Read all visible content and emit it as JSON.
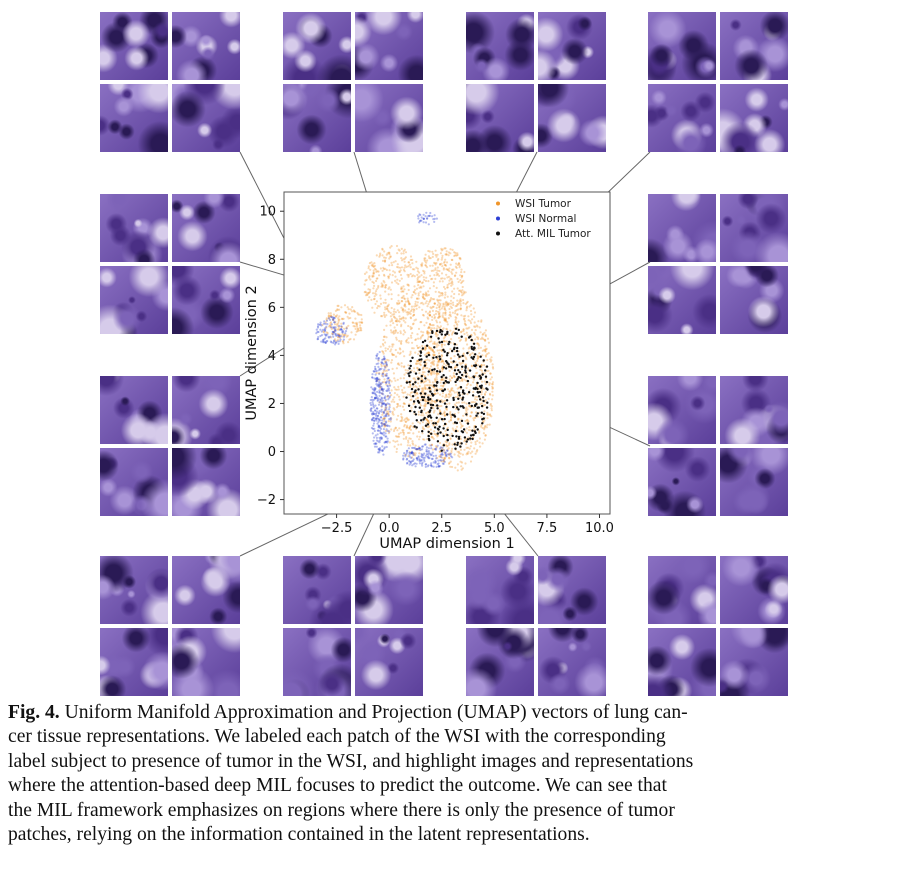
{
  "figure": {
    "label": "Fig. 4.",
    "caption_lines": [
      "Uniform Manifold Approximation and Projection (UMAP) vectors of lung can-",
      "cer tissue representations. We labeled each patch of the WSI with the corresponding",
      "label subject to presence of tumor in the WSI, and highlight images and representations",
      "where the attention-based deep MIL focuses to predict the outcome. We can see that",
      "the MIL framework emphasizes on regions where there is only the presence of tumor",
      "patches, relying on the information contained in the latent representations."
    ]
  },
  "chart_data": {
    "type": "scatter",
    "xlabel": "UMAP dimension 1",
    "ylabel": "UMAP dimension 2",
    "xlim": [
      -5,
      10.5
    ],
    "ylim": [
      -2.6,
      10.8
    ],
    "xticks": [
      -2.5,
      0.0,
      2.5,
      5.0,
      7.5,
      10.0
    ],
    "xtick_labels": [
      "−2.5",
      "0.0",
      "2.5",
      "5.0",
      "7.5",
      "10.0"
    ],
    "yticks": [
      -2,
      0,
      2,
      4,
      6,
      8,
      10
    ],
    "ytick_labels": [
      "−2",
      "0",
      "2",
      "4",
      "6",
      "8",
      "10"
    ],
    "grid": false,
    "legend_position": "top-right",
    "series": [
      {
        "name": "WSI Tumor",
        "color": "#f0952a"
      },
      {
        "name": "WSI Normal",
        "color": "#2c3fd4"
      },
      {
        "name": "Att. MIL Tumor",
        "color": "#111111"
      }
    ],
    "callout_points": [
      [
        -3.5,
        6.3
      ],
      [
        -0.2,
        8.3
      ],
      [
        2.2,
        4.2
      ],
      [
        2.8,
        4.4
      ],
      [
        4.0,
        5.0
      ],
      [
        4.9,
        4.3
      ],
      [
        4.6,
        3.4
      ],
      [
        2.5,
        0.7
      ],
      [
        0.7,
        0.1
      ],
      [
        3.3,
        0.0
      ],
      [
        -3.4,
        5.2
      ]
    ]
  },
  "patches": {
    "colors": [
      "#4a2f85",
      "#7d63b8",
      "#a893d6",
      "#d6cbea",
      "#2a1a55"
    ]
  }
}
